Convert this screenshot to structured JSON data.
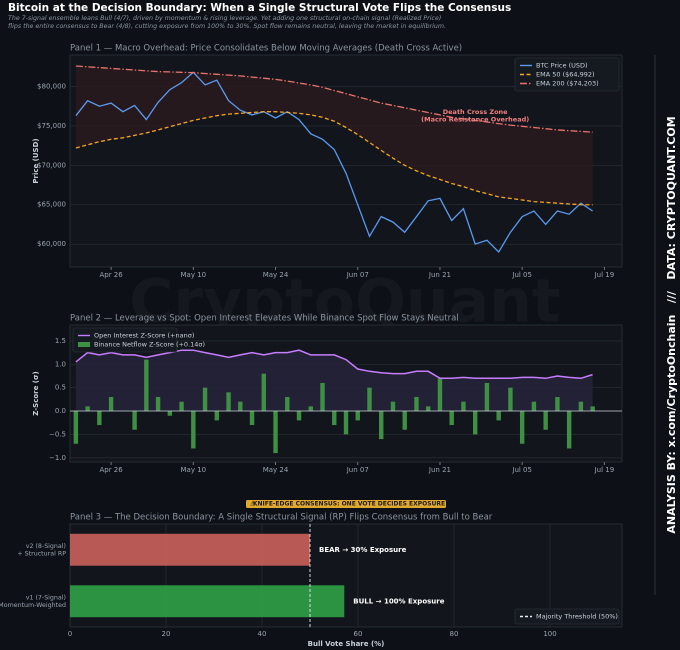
{
  "header": {
    "title": "Bitcoin at the Decision Boundary: When a Single Structural Vote Flips the Consensus",
    "subtitle": [
      "The 7-signal ensemble leans Bull (4/7), driven by momentum & rising leverage. Yet adding one structural on-chain signal (Realized Price)",
      "flips the entire consensus to Bear (4/8), cutting exposure from 100% to 30%. Spot flow remains neutral, leaving the market in equilibrium."
    ],
    "watermark": "CryptoQuant",
    "side_text": "ANALYSIS BY: x.com/CryptoOnchain   ///   DATA: CRYPTOQUANT.COM"
  },
  "chart_data": [
    {
      "type": "line",
      "title": "Panel 1 — Macro Overhead: Price Consolidates Below Moving Averages (Death Cross Active)",
      "y_label": "Price (USD)",
      "legend": "upper right",
      "grid": true,
      "annotation": [
        "Death Cross Zone",
        "(Macro Resistance Overhead)"
      ],
      "annotation_color": "#f08080",
      "x": [
        "Apr 20",
        "Apr 22",
        "Apr 24",
        "Apr 26",
        "Apr 28",
        "Apr 30",
        "May 02",
        "May 04",
        "May 06",
        "May 08",
        "May 10",
        "May 12",
        "May 14",
        "May 16",
        "May 18",
        "May 20",
        "May 22",
        "May 24",
        "May 26",
        "May 28",
        "May 30",
        "Jun 01",
        "Jun 03",
        "Jun 05",
        "Jun 07",
        "Jun 09",
        "Jun 11",
        "Jun 13",
        "Jun 15",
        "Jun 17",
        "Jun 19",
        "Jun 21",
        "Jun 23",
        "Jun 25",
        "Jun 27",
        "Jun 29",
        "Jul 01",
        "Jul 03",
        "Jul 05",
        "Jul 07",
        "Jul 09",
        "Jul 11",
        "Jul 13",
        "Jul 15",
        "Jul 17"
      ],
      "xlim": [
        "Apr 19",
        "Jul 22"
      ],
      "xticks": [
        "Apr 26",
        "May 10",
        "May 24",
        "Jun 07",
        "Jun 21",
        "Jul 05",
        "Jul 19"
      ],
      "ylim": [
        57100,
        84000
      ],
      "yticks": [
        {
          "value": 60000,
          "label": "$60,000"
        },
        {
          "value": 65000,
          "label": "$65,000"
        },
        {
          "value": 70000,
          "label": "$70,000"
        },
        {
          "value": 75000,
          "label": "$75,000"
        },
        {
          "value": 80000,
          "label": "$80,000"
        }
      ],
      "series": [
        {
          "name": "BTC Price (USD)",
          "color": "#5b9bf0",
          "linestyle": "solid",
          "values": [
            76300,
            78200,
            77500,
            77900,
            76800,
            77600,
            75800,
            78000,
            79600,
            80500,
            81800,
            80200,
            80800,
            78200,
            77000,
            76400,
            76800,
            76000,
            76800,
            75800,
            74000,
            73300,
            72000,
            69000,
            65000,
            61000,
            63500,
            62800,
            61500,
            63500,
            65500,
            65800,
            63000,
            64500,
            60000,
            60500,
            59000,
            61500,
            63500,
            64200,
            62500,
            64200,
            63800,
            65200,
            64200
          ]
        },
        {
          "name": "EMA 50 ($64,992)",
          "color": "#f5a623",
          "linestyle": "dashed",
          "values": [
            72200,
            72600,
            73000,
            73300,
            73500,
            73800,
            74100,
            74500,
            74900,
            75300,
            75700,
            76000,
            76300,
            76500,
            76600,
            76700,
            76800,
            76800,
            76700,
            76600,
            76400,
            76100,
            75600,
            74800,
            73900,
            72900,
            71900,
            70900,
            70000,
            69300,
            68700,
            68200,
            67700,
            67300,
            66800,
            66400,
            66000,
            65800,
            65600,
            65400,
            65300,
            65200,
            65100,
            65000,
            64992
          ]
        },
        {
          "name": "EMA 200 ($74,203)",
          "color": "#e8736c",
          "linestyle": "dashdot",
          "fill": "#2a1a1e",
          "values": [
            82600,
            82500,
            82400,
            82300,
            82200,
            82100,
            82000,
            81900,
            81850,
            81800,
            81750,
            81650,
            81550,
            81450,
            81350,
            81200,
            81050,
            80900,
            80700,
            80450,
            80200,
            79900,
            79500,
            79100,
            78700,
            78300,
            77900,
            77600,
            77300,
            77000,
            76700,
            76400,
            76100,
            75900,
            75700,
            75500,
            75300,
            75100,
            74950,
            74800,
            74650,
            74500,
            74400,
            74300,
            74203
          ]
        }
      ]
    },
    {
      "type": "combo",
      "title": "Panel 2 — Leverage vs Spot: Open Interest Elevates While Binance Spot Flow Stays Neutral",
      "y_label": "Z-Score (σ)",
      "legend": "upper left",
      "grid": true,
      "x": [
        "Apr 20",
        "Apr 22",
        "Apr 24",
        "Apr 26",
        "Apr 28",
        "Apr 30",
        "May 02",
        "May 04",
        "May 06",
        "May 08",
        "May 10",
        "May 12",
        "May 14",
        "May 16",
        "May 18",
        "May 20",
        "May 22",
        "May 24",
        "May 26",
        "May 28",
        "May 30",
        "Jun 01",
        "Jun 03",
        "Jun 05",
        "Jun 07",
        "Jun 09",
        "Jun 11",
        "Jun 13",
        "Jun 15",
        "Jun 17",
        "Jun 19",
        "Jun 21",
        "Jun 23",
        "Jun 25",
        "Jun 27",
        "Jun 29",
        "Jul 01",
        "Jul 03",
        "Jul 05",
        "Jul 07",
        "Jul 09",
        "Jul 11",
        "Jul 13",
        "Jul 15",
        "Jul 17"
      ],
      "xlim": [
        "Apr 19",
        "Jul 22"
      ],
      "xticks": [
        "Apr 26",
        "May 10",
        "May 24",
        "Jun 07",
        "Jun 21",
        "Jul 05",
        "Jul 19"
      ],
      "ylim": [
        -1.09,
        1.84
      ],
      "yticks": [
        {
          "value": -1,
          "label": "−1.0"
        },
        {
          "value": -0.5,
          "label": "−0.5"
        },
        {
          "value": 0,
          "label": "0.0"
        },
        {
          "value": 0.5,
          "label": "0.5"
        },
        {
          "value": 1,
          "label": "1.0"
        },
        {
          "value": 1.5,
          "label": "1.5"
        }
      ],
      "series": [
        {
          "name": "Open Interest Z-Score (+nanσ)",
          "kind": "line",
          "color": "#c77dff",
          "fill": "#262238",
          "values": [
            1.05,
            1.25,
            1.2,
            1.25,
            1.2,
            1.2,
            1.15,
            1.2,
            1.25,
            1.3,
            1.3,
            1.25,
            1.2,
            1.15,
            1.2,
            1.25,
            1.2,
            1.25,
            1.25,
            1.3,
            1.2,
            1.2,
            1.2,
            1.1,
            0.9,
            0.85,
            0.82,
            0.8,
            0.8,
            0.85,
            0.85,
            0.7,
            0.7,
            0.72,
            0.7,
            0.7,
            0.7,
            0.7,
            0.72,
            0.72,
            0.7,
            0.75,
            0.72,
            0.7,
            0.78
          ]
        },
        {
          "name": "Binance Netflow Z-Score (+0.14σ)",
          "kind": "bar",
          "color": "#3f8f45",
          "values": [
            -0.7,
            0.1,
            -0.3,
            0.3,
            0.0,
            -0.4,
            1.1,
            0.3,
            -0.1,
            0.2,
            -0.8,
            0.5,
            -0.2,
            0.4,
            0.2,
            -0.3,
            0.8,
            -0.9,
            0.3,
            -0.2,
            0.1,
            0.6,
            -0.3,
            -0.5,
            -0.2,
            0.5,
            -0.6,
            0.2,
            -0.4,
            0.3,
            0.1,
            0.7,
            -0.3,
            0.2,
            -0.5,
            0.6,
            -0.2,
            0.5,
            -0.7,
            0.2,
            -0.4,
            0.3,
            -0.8,
            0.2,
            0.1
          ]
        }
      ]
    },
    {
      "type": "hbar",
      "title": "Panel 3 — The Decision Boundary: A Single Structural Signal (RP) Flips Consensus from Bull to Bear",
      "badge": "KNIFE-EDGE CONSENSUS: ONE VOTE DECIDES EXPOSURE",
      "x_label": "Bull Vote Share (%)",
      "legend": "lower right",
      "grid": true,
      "categories": [
        [
          "v2 (8-Signal)",
          "+ Structural RP"
        ],
        [
          "v1 (7-Signal)",
          "Momentum-Weighted"
        ]
      ],
      "values": [
        50,
        57.14
      ],
      "colors": [
        "#c8605a",
        "#2f9e45"
      ],
      "bar_annotations": [
        "BEAR → 30% Exposure",
        "BULL → 100% Exposure"
      ],
      "threshold": {
        "value": 50,
        "label": "Majority Threshold (50%)"
      },
      "xlim": [
        0,
        115
      ],
      "xticks": [
        0,
        20,
        40,
        60,
        80,
        100
      ]
    }
  ]
}
